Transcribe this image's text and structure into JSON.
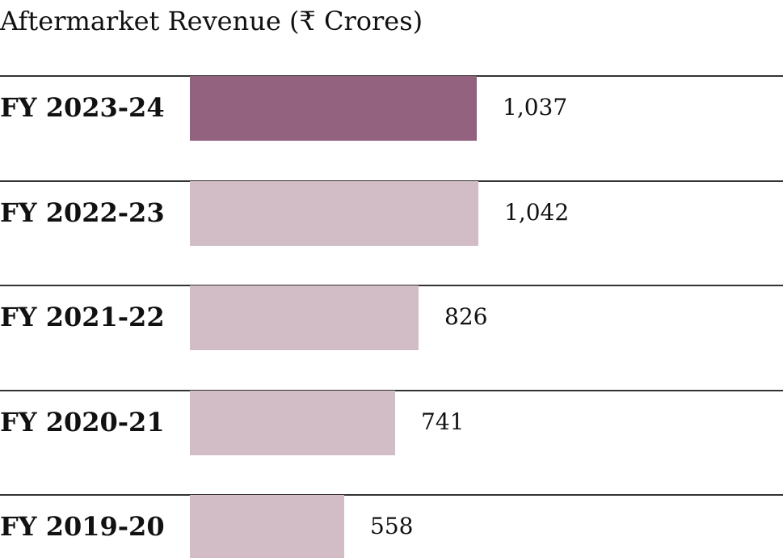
{
  "chart_data": {
    "type": "bar",
    "orientation": "horizontal",
    "title": "Aftermarket Revenue (₹ Crores)",
    "categories": [
      "FY 2023-24",
      "FY 2022-23",
      "FY 2021-22",
      "FY 2020-21",
      "FY 2019-20"
    ],
    "values": [
      1037,
      1042,
      826,
      741,
      558
    ],
    "value_labels": [
      "1,037",
      "1,042",
      "826",
      "741",
      "558"
    ],
    "highlight_index": 0,
    "colors": {
      "highlight": "#92627F",
      "default": "#D2BDC7",
      "rule": "#333333"
    },
    "grid": false,
    "legend": "none"
  }
}
